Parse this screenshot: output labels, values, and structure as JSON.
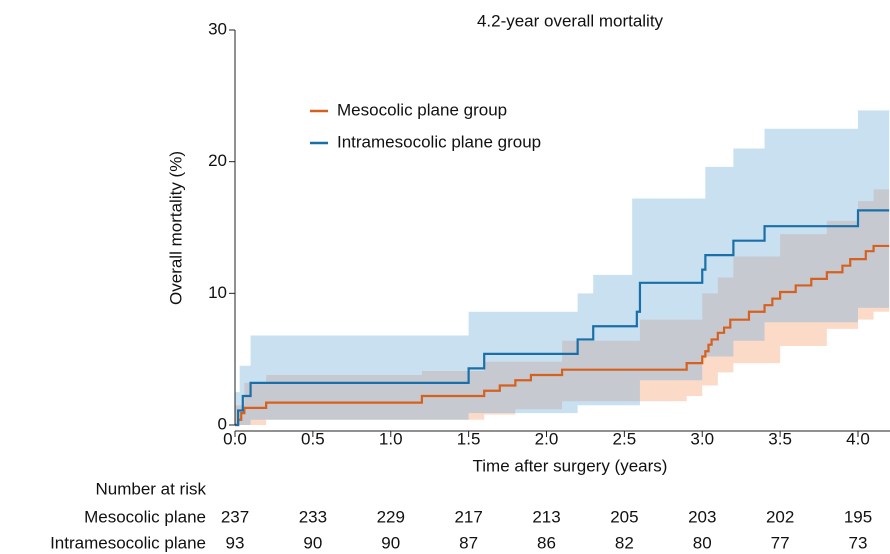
{
  "chart_data": {
    "type": "step",
    "title": "4.2-year overall mortality",
    "x_label": "Time after surgery (years)",
    "y_label": "Overall mortality (%)",
    "xlim": [
      0,
      4.2
    ],
    "ylim": [
      0,
      30
    ],
    "xticks": [
      {
        "value": 0,
        "label": "0.0"
      },
      0.5,
      {
        "value": 1,
        "label": "1.0"
      },
      1.5,
      {
        "value": 2,
        "label": "2.0"
      },
      2.5,
      {
        "value": 3,
        "label": "3.0"
      },
      3.5,
      {
        "value": 4,
        "label": "4.0"
      }
    ],
    "yticks": [
      0,
      10,
      20,
      30
    ],
    "legend_position": "upper-left",
    "series": [
      {
        "name": "Mesocolic plane group",
        "color": "#d6601e",
        "band_color": "rgba(244,160,110,0.38)",
        "x": [
          0,
          0.02,
          0.04,
          0.06,
          0.2,
          1.2,
          1.6,
          1.7,
          1.8,
          1.9,
          2.1,
          2.9,
          3.0,
          3.02,
          3.04,
          3.06,
          3.1,
          3.14,
          3.18,
          3.3,
          3.4,
          3.45,
          3.5,
          3.6,
          3.7,
          3.8,
          3.9,
          3.95,
          4.05,
          4.1
        ],
        "values": [
          0,
          0.4,
          0.9,
          1.3,
          1.7,
          2.2,
          2.6,
          3.0,
          3.4,
          3.8,
          4.2,
          4.7,
          5.2,
          5.6,
          6.1,
          6.5,
          7.0,
          7.4,
          8.0,
          8.6,
          9.1,
          9.6,
          10.1,
          10.6,
          11.1,
          11.6,
          12.1,
          12.6,
          13.2,
          13.6
        ],
        "upper": {
          "x": [
            0,
            0.06,
            0.2,
            1.2,
            1.6,
            2.1,
            2.6,
            3.0,
            3.1,
            3.2,
            3.5,
            3.8,
            4.0,
            4.1
          ],
          "values": [
            1.5,
            3.2,
            3.8,
            4.1,
            4.8,
            6.4,
            8.0,
            10.0,
            11.2,
            12.8,
            14.5,
            15.5,
            17.0,
            17.9
          ]
        },
        "lower": {
          "x": [
            0,
            0.2,
            1.6,
            1.8,
            2.1,
            2.9,
            3.0,
            3.1,
            3.2,
            3.5,
            3.8,
            4.0,
            4.1
          ],
          "values": [
            0,
            0.4,
            0.8,
            1.2,
            1.8,
            2.2,
            3.0,
            4.0,
            4.7,
            6.0,
            7.3,
            8.0,
            8.6
          ]
        }
      },
      {
        "name": "Intramesocolic plane group",
        "color": "#1b6fa8",
        "band_color": "rgba(120,178,220,0.4)",
        "x": [
          0,
          0.02,
          0.05,
          0.1,
          1.5,
          1.6,
          2.2,
          2.3,
          2.58,
          2.6,
          3.0,
          3.02,
          3.2,
          3.4,
          4.0
        ],
        "values": [
          0,
          1.1,
          2.2,
          3.2,
          4.3,
          5.4,
          6.5,
          7.5,
          8.6,
          10.8,
          11.8,
          12.9,
          14.0,
          15.1,
          16.3
        ],
        "upper": {
          "x": [
            0,
            0.03,
            0.1,
            1.5,
            2.2,
            2.3,
            2.55,
            3.02,
            3.2,
            3.4,
            4.0
          ],
          "values": [
            2.5,
            4.5,
            6.8,
            8.6,
            10.0,
            11.4,
            17.2,
            19.6,
            21.0,
            22.5,
            23.9
          ]
        },
        "lower": {
          "x": [
            0,
            0.1,
            1.5,
            2.2,
            2.6,
            3.0,
            3.2,
            3.4,
            4.0
          ],
          "values": [
            0,
            0.4,
            0.9,
            1.5,
            3.4,
            5.2,
            6.4,
            7.8,
            8.9
          ]
        }
      }
    ],
    "risk_table": {
      "title": "Number at risk",
      "rows": [
        {
          "label": "Mesocolic plane",
          "values": [
            237,
            233,
            229,
            217,
            213,
            205,
            203,
            202,
            195
          ]
        },
        {
          "label": "Intramesocolic plane",
          "values": [
            93,
            90,
            90,
            87,
            86,
            82,
            80,
            77,
            73
          ]
        }
      ]
    }
  }
}
